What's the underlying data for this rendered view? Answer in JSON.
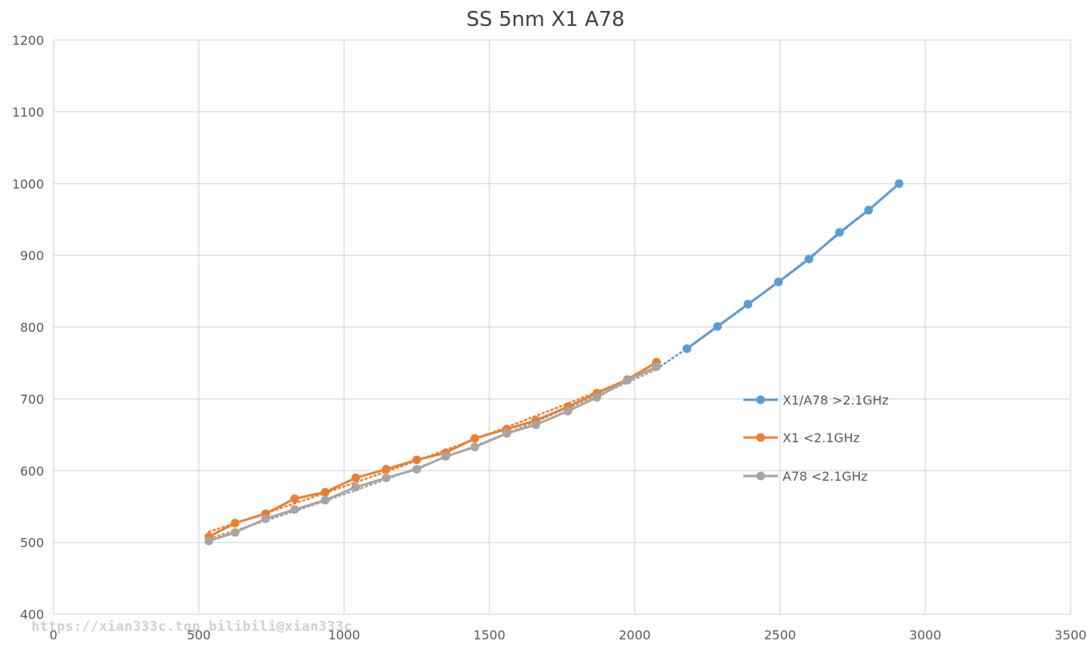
{
  "chart_data": {
    "type": "line",
    "title": "SS 5nm X1 A78",
    "xlim": [
      0,
      3500
    ],
    "ylim": [
      400,
      1200
    ],
    "x_ticks": [
      0,
      500,
      1000,
      1500,
      2000,
      2500,
      3000,
      3500
    ],
    "y_ticks": [
      400,
      500,
      600,
      700,
      800,
      900,
      1000,
      1100,
      1200
    ],
    "grid": true,
    "legend_position": "right",
    "trendlines": "dotted",
    "series": [
      {
        "name": "X1/A78 >2.1GHz",
        "color": "#5B9BD5",
        "x": [
          2180,
          2285,
          2390,
          2495,
          2600,
          2705,
          2805,
          2910
        ],
        "y": [
          770,
          801,
          832,
          863,
          895,
          932,
          963,
          1000
        ]
      },
      {
        "name": "X1 <2.1GHz",
        "color": "#ED7D31",
        "x": [
          535,
          625,
          730,
          830,
          935,
          1040,
          1145,
          1250,
          1350,
          1450,
          1560,
          1660,
          1770,
          1870,
          1975,
          2075
        ],
        "y": [
          508,
          527,
          540,
          561,
          570,
          590,
          602,
          615,
          625,
          645,
          658,
          670,
          689,
          708,
          727,
          751
        ]
      },
      {
        "name": "A78 <2.1GHz",
        "color": "#A5A5A5",
        "x": [
          535,
          625,
          730,
          830,
          935,
          1040,
          1145,
          1250,
          1350,
          1450,
          1560,
          1660,
          1770,
          1870,
          1975,
          2075
        ],
        "y": [
          502,
          514,
          533,
          546,
          559,
          577,
          590,
          602,
          620,
          633,
          652,
          664,
          683,
          702,
          726,
          745
        ]
      }
    ]
  },
  "watermark": "https://xian333c.top bilibili@xian333c"
}
